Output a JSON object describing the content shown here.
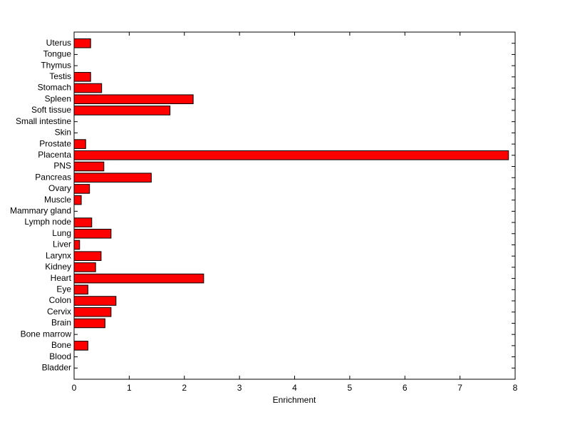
{
  "chart_data": {
    "type": "barh",
    "xlabel": "Enrichment",
    "categories": [
      "Bladder",
      "Blood",
      "Bone",
      "Bone marrow",
      "Brain",
      "Cervix",
      "Colon",
      "Eye",
      "Heart",
      "Kidney",
      "Larynx",
      "Liver",
      "Lung",
      "Lymph node",
      "Mammary gland",
      "Muscle",
      "Ovary",
      "Pancreas",
      "PNS",
      "Placenta",
      "Prostate",
      "Skin",
      "Small intestine",
      "Soft tissue",
      "Spleen",
      "Stomach",
      "Testis",
      "Thymus",
      "Tongue",
      "Uterus"
    ],
    "values": [
      0,
      0,
      0.25,
      0,
      0.56,
      0.67,
      0.76,
      0.25,
      2.35,
      0.39,
      0.49,
      0.1,
      0.67,
      0.32,
      0,
      0.13,
      0.28,
      1.4,
      0.54,
      7.88,
      0.21,
      0,
      0,
      1.74,
      2.16,
      0.5,
      0.3,
      0,
      0,
      0.3
    ],
    "color": "#ff0000",
    "xlim": [
      0,
      8
    ],
    "xticks": [
      0,
      1,
      2,
      3,
      4,
      5,
      6,
      7,
      8
    ]
  }
}
